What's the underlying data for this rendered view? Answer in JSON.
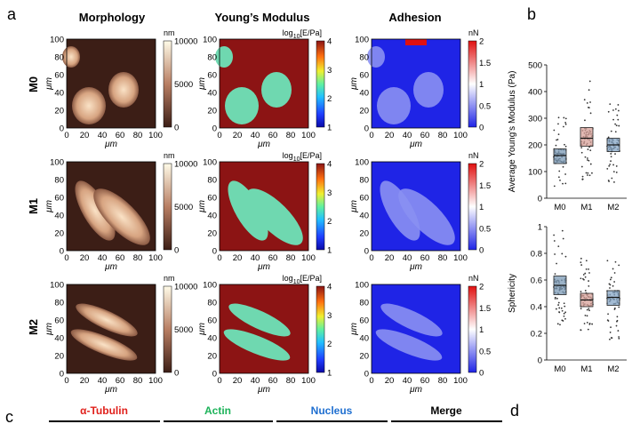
{
  "panel_labels": {
    "a": "a",
    "b": "b",
    "c": "c",
    "d": "d"
  },
  "column_titles": [
    "Morphology",
    "Young’s Modulus",
    "Adhesion"
  ],
  "row_labels": [
    "M0",
    "M1",
    "M2"
  ],
  "map_axis": {
    "x_ticks": [
      "0",
      "20",
      "40",
      "60",
      "80",
      "100"
    ],
    "y_ticks": [
      "0",
      "20",
      "40",
      "60",
      "80",
      "100"
    ],
    "unit": "μm"
  },
  "colorbars": {
    "morphology": {
      "unit": "nm",
      "ticks": [
        "10000",
        "5000",
        "0"
      ]
    },
    "modulus": {
      "unit": "log10[E/Pa]",
      "unit_base": "log",
      "unit_sub": "10",
      "unit_rest": "[E/Pa]",
      "ticks": [
        "4",
        "3",
        "2",
        "1"
      ]
    },
    "adhesion": {
      "unit": "nN",
      "ticks": [
        "2",
        "1.5",
        "1",
        "0.5",
        "0"
      ]
    }
  },
  "colors": {
    "morph_dark": "#3c1e16",
    "morph_light": "#f3dcc0",
    "modulus_bg": "#8c1414",
    "modulus_cell": "#6fd8b0",
    "adhesion_bg": "#1f24e6",
    "box_m0": "#7b9ab5",
    "box_m1": "#d8a29a",
    "box_m2": "#86a6c6",
    "tubulin": "#e0201b",
    "actin": "#1db35a",
    "nucleus": "#1f6fd0"
  },
  "chart_data": [
    {
      "type": "box",
      "title": "",
      "xlabel": "",
      "ylabel": "Average Young's Modulus (Pa)",
      "categories": [
        "M0",
        "M1",
        "M2"
      ],
      "ylim": [
        0,
        500
      ],
      "yticks": [
        "0",
        "100",
        "200",
        "300",
        "400",
        "500"
      ],
      "medians": [
        160,
        225,
        200
      ],
      "q1": [
        130,
        195,
        175
      ],
      "q3": [
        185,
        265,
        225
      ],
      "whisker_low": [
        40,
        70,
        60
      ],
      "whisker_high": [
        330,
        490,
        360
      ]
    },
    {
      "type": "box",
      "title": "",
      "xlabel": "",
      "ylabel": "Sphericity",
      "categories": [
        "M0",
        "M1",
        "M2"
      ],
      "ylim": [
        0,
        1
      ],
      "yticks": [
        "0",
        "0.2",
        "0.4",
        "0.6",
        "0.8",
        "1"
      ],
      "medians": [
        0.56,
        0.45,
        0.47
      ],
      "q1": [
        0.49,
        0.4,
        0.41
      ],
      "q3": [
        0.63,
        0.5,
        0.52
      ],
      "whisker_low": [
        0.25,
        0.22,
        0.15
      ],
      "whisker_high": [
        0.97,
        0.77,
        0.78
      ]
    }
  ],
  "legend_c": [
    "α-Tubulin",
    "Actin",
    "Nucleus",
    "Merge"
  ]
}
